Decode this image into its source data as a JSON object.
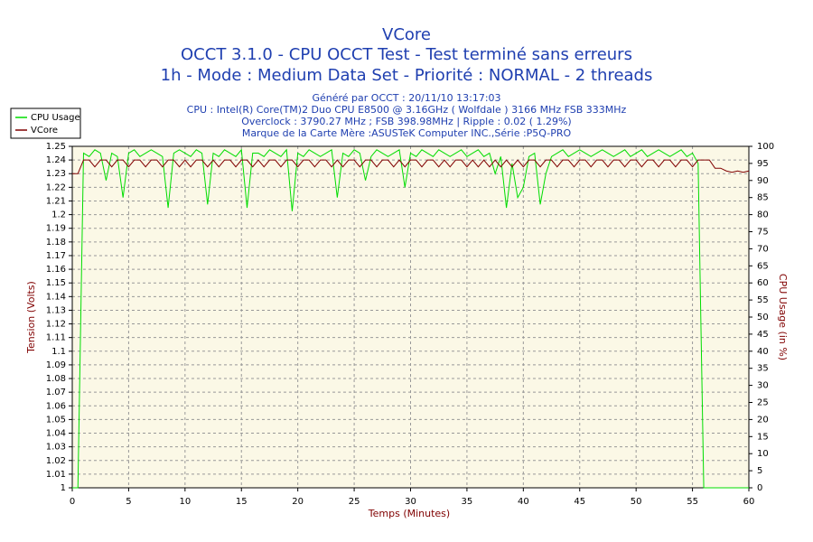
{
  "chart_data": {
    "type": "line",
    "title": "VCore",
    "title_lines": [
      "OCCT 3.1.0 - CPU OCCT Test - Test terminé sans erreurs",
      "1h - Mode : Medium Data Set - Priorité : NORMAL - 2 threads"
    ],
    "subtitle_lines": [
      "Généré par OCCT : 20/11/10 13:17:03",
      "CPU : Intel(R) Core(TM)2 Duo CPU E8500 @ 3.16GHz ( Wolfdale ) 3166 MHz FSB 333MHz",
      "Overclock : 3790.27 MHz ; FSB 398.98MHz | Ripple : 0.02 ( 1.29%)",
      "Marque de la Carte Mère :ASUSTeK Computer INC.,Série :P5Q-PRO"
    ],
    "xlabel": "Temps (Minutes)",
    "ylabel": "Tension (Volts)",
    "y2label": "CPU Usage (in %)",
    "xlim": [
      0,
      60
    ],
    "xticks": [
      0,
      5,
      10,
      15,
      20,
      25,
      30,
      35,
      40,
      45,
      50,
      55,
      60
    ],
    "ylim": [
      1,
      1.25
    ],
    "yticks": [
      1,
      1.01,
      1.02,
      1.03,
      1.04,
      1.05,
      1.06,
      1.07,
      1.08,
      1.09,
      1.1,
      1.11,
      1.12,
      1.13,
      1.14,
      1.15,
      1.16,
      1.17,
      1.18,
      1.19,
      1.2,
      1.21,
      1.22,
      1.23,
      1.24,
      1.25
    ],
    "y2lim": [
      0,
      100
    ],
    "y2ticks": [
      0,
      5,
      10,
      15,
      20,
      25,
      30,
      35,
      40,
      45,
      50,
      55,
      60,
      65,
      70,
      75,
      80,
      85,
      90,
      95,
      100
    ],
    "grid": true,
    "x": [
      0,
      0.5,
      1,
      1.5,
      2,
      2.5,
      3,
      3.5,
      4,
      4.5,
      5,
      5.5,
      6,
      6.5,
      7,
      7.5,
      8,
      8.5,
      9,
      9.5,
      10,
      10.5,
      11,
      11.5,
      12,
      12.5,
      13,
      13.5,
      14,
      14.5,
      15,
      15.5,
      16,
      16.5,
      17,
      17.5,
      18,
      18.5,
      19,
      19.5,
      20,
      20.5,
      21,
      21.5,
      22,
      22.5,
      23,
      23.5,
      24,
      24.5,
      25,
      25.5,
      26,
      26.5,
      27,
      27.5,
      28,
      28.5,
      29,
      29.5,
      30,
      30.5,
      31,
      31.5,
      32,
      32.5,
      33,
      33.5,
      34,
      34.5,
      35,
      35.5,
      36,
      36.5,
      37,
      37.5,
      38,
      38.5,
      39,
      39.5,
      40,
      40.5,
      41,
      41.5,
      42,
      42.5,
      43,
      43.5,
      44,
      44.5,
      45,
      45.5,
      46,
      46.5,
      47,
      47.5,
      48,
      48.5,
      49,
      49.5,
      50,
      50.5,
      51,
      51.5,
      52,
      52.5,
      53,
      53.5,
      54,
      54.5,
      55,
      55.5,
      56,
      56.5,
      57,
      57.5,
      58,
      58.5,
      59,
      59.5,
      60
    ],
    "series": [
      {
        "name": "CPU Usage",
        "color": "#00dd00",
        "axis": "y2",
        "values": [
          0,
          0,
          98,
          97,
          99,
          98,
          90,
          98,
          97,
          85,
          98,
          99,
          97,
          98,
          99,
          98,
          97,
          82,
          98,
          99,
          98,
          97,
          99,
          98,
          83,
          98,
          97,
          99,
          98,
          97,
          99,
          82,
          98,
          98,
          97,
          99,
          98,
          97,
          99,
          81,
          98,
          97,
          99,
          98,
          97,
          98,
          99,
          85,
          98,
          97,
          99,
          98,
          90,
          97,
          99,
          98,
          97,
          98,
          99,
          88,
          98,
          97,
          99,
          98,
          97,
          99,
          98,
          97,
          98,
          99,
          97,
          98,
          99,
          97,
          98,
          92,
          97,
          82,
          95,
          85,
          88,
          97,
          98,
          83,
          92,
          97,
          98,
          99,
          97,
          98,
          99,
          98,
          97,
          98,
          99,
          98,
          97,
          98,
          99,
          97,
          98,
          99,
          97,
          98,
          99,
          98,
          97,
          98,
          99,
          97,
          98,
          95,
          0,
          0,
          0,
          0,
          0,
          0,
          0,
          0,
          0
        ]
      },
      {
        "name": "VCore",
        "color": "#800000",
        "values": [
          1.23,
          1.23,
          1.24,
          1.24,
          1.235,
          1.24,
          1.24,
          1.235,
          1.24,
          1.24,
          1.235,
          1.24,
          1.24,
          1.235,
          1.24,
          1.24,
          1.235,
          1.24,
          1.24,
          1.235,
          1.24,
          1.235,
          1.24,
          1.24,
          1.235,
          1.24,
          1.235,
          1.24,
          1.24,
          1.235,
          1.24,
          1.24,
          1.235,
          1.24,
          1.235,
          1.24,
          1.24,
          1.235,
          1.24,
          1.24,
          1.235,
          1.24,
          1.24,
          1.235,
          1.24,
          1.24,
          1.235,
          1.24,
          1.235,
          1.24,
          1.24,
          1.235,
          1.24,
          1.24,
          1.235,
          1.24,
          1.24,
          1.235,
          1.24,
          1.235,
          1.24,
          1.24,
          1.235,
          1.24,
          1.24,
          1.235,
          1.24,
          1.235,
          1.24,
          1.24,
          1.235,
          1.24,
          1.235,
          1.24,
          1.235,
          1.24,
          1.235,
          1.24,
          1.235,
          1.24,
          1.235,
          1.24,
          1.24,
          1.235,
          1.24,
          1.24,
          1.235,
          1.24,
          1.24,
          1.235,
          1.24,
          1.24,
          1.235,
          1.24,
          1.24,
          1.235,
          1.24,
          1.24,
          1.235,
          1.24,
          1.24,
          1.235,
          1.24,
          1.24,
          1.235,
          1.24,
          1.24,
          1.235,
          1.24,
          1.24,
          1.235,
          1.24,
          1.24,
          1.24,
          1.234,
          1.234,
          1.232,
          1.231,
          1.232,
          1.231,
          1.232
        ]
      }
    ]
  }
}
